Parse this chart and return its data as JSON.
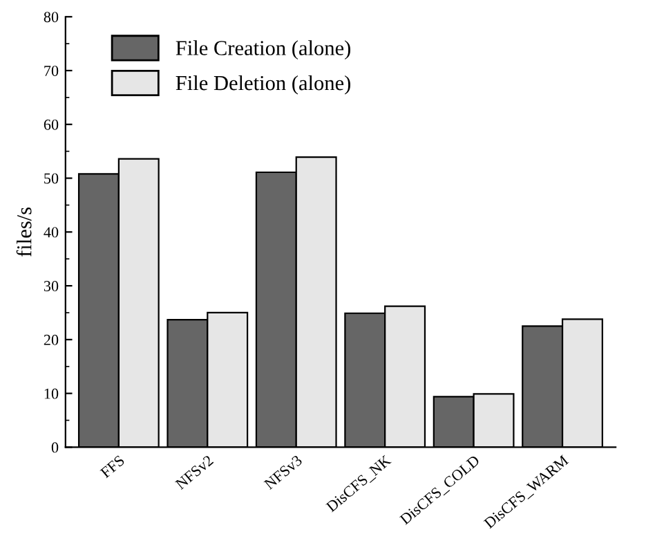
{
  "chart_data": {
    "type": "bar",
    "ylabel": "files/s",
    "categories": [
      "FFS",
      "NFSv2",
      "NFSv3",
      "DisCFS_NK",
      "DisCFS_COLD",
      "DisCFS_WARM"
    ],
    "series": [
      {
        "name": "File Creation (alone)",
        "color": "#666666",
        "values": [
          50.8,
          23.7,
          51.1,
          24.9,
          9.4,
          22.5
        ]
      },
      {
        "name": "File Deletion (alone)",
        "color": "#e6e6e6",
        "values": [
          53.6,
          25.0,
          53.9,
          26.2,
          9.9,
          23.8
        ]
      }
    ],
    "ylim": [
      0,
      80
    ],
    "yticks": [
      0,
      10,
      20,
      30,
      40,
      50,
      60,
      70,
      80
    ],
    "grid": false,
    "legend": "top left"
  }
}
